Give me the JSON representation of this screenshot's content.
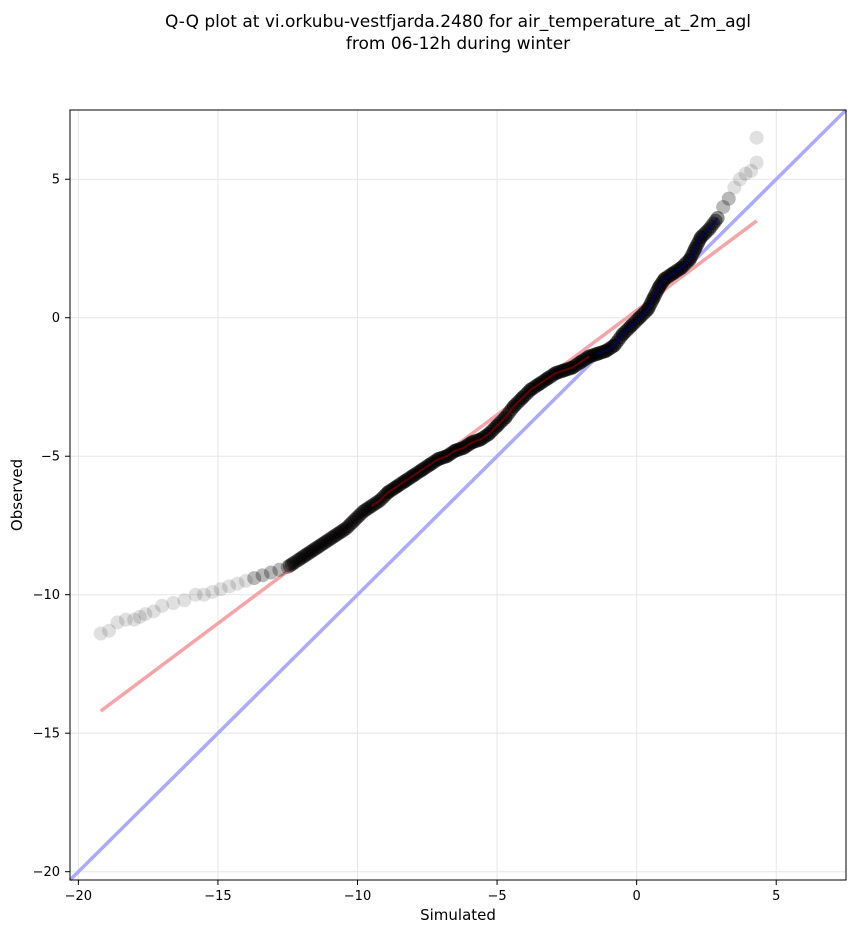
{
  "chart_data": {
    "type": "scatter",
    "title": [
      "Q-Q plot at vi.orkubu-vestfjarda.2480 for air_temperature_at_2m_agl",
      "from 06-12h during winter"
    ],
    "xlabel": "Simulated",
    "ylabel": "Observed",
    "xlim": [
      -20.3,
      7.5
    ],
    "ylim": [
      -20.3,
      7.5
    ],
    "xticks": [
      -20,
      -15,
      -10,
      -5,
      0,
      5
    ],
    "yticks": [
      -20,
      -15,
      -10,
      -5,
      0,
      5
    ],
    "xtick_labels": [
      "−20",
      "−15",
      "−10",
      "−5",
      "0",
      "5"
    ],
    "ytick_labels": [
      "−20",
      "−15",
      "−10",
      "−5",
      "0",
      "5"
    ],
    "grid": true,
    "colors": {
      "points": "#000000",
      "identity_line": "#aaaaff",
      "fit_line": "#f5a5a8",
      "dense_red": "#8b0000",
      "dense_blue": "#00008b"
    },
    "series": [
      {
        "kind": "quantile-points",
        "values": [
          [
            -19.2,
            -11.4
          ],
          [
            -18.9,
            -11.3
          ],
          [
            -18.6,
            -11.0
          ],
          [
            -18.3,
            -10.9
          ],
          [
            -18.0,
            -10.9
          ],
          [
            -17.8,
            -10.8
          ],
          [
            -17.6,
            -10.7
          ],
          [
            -17.3,
            -10.6
          ],
          [
            -17.0,
            -10.4
          ],
          [
            -16.6,
            -10.3
          ],
          [
            -16.2,
            -10.2
          ],
          [
            -15.8,
            -10.0
          ],
          [
            -15.5,
            -10.0
          ],
          [
            -15.2,
            -9.9
          ],
          [
            -14.9,
            -9.8
          ],
          [
            -14.6,
            -9.7
          ],
          [
            -14.3,
            -9.6
          ],
          [
            -14.0,
            -9.5
          ],
          [
            -13.7,
            -9.4
          ],
          [
            -13.4,
            -9.3
          ],
          [
            -13.1,
            -9.2
          ],
          [
            -12.8,
            -9.1
          ],
          [
            -12.5,
            -9.0
          ],
          [
            -12.2,
            -8.8
          ],
          [
            -11.9,
            -8.6
          ],
          [
            -11.6,
            -8.4
          ],
          [
            -11.3,
            -8.2
          ],
          [
            -11.0,
            -8.0
          ],
          [
            -10.7,
            -7.8
          ],
          [
            -10.4,
            -7.6
          ],
          [
            -10.1,
            -7.3
          ],
          [
            -9.8,
            -7.0
          ],
          [
            -9.5,
            -6.8
          ],
          [
            -9.2,
            -6.6
          ],
          [
            -8.9,
            -6.3
          ],
          [
            -8.6,
            -6.1
          ],
          [
            -8.3,
            -5.9
          ],
          [
            -8.0,
            -5.7
          ],
          [
            -7.7,
            -5.5
          ],
          [
            -7.4,
            -5.3
          ],
          [
            -7.1,
            -5.1
          ],
          [
            -6.8,
            -5.0
          ],
          [
            -6.5,
            -4.8
          ],
          [
            -6.2,
            -4.7
          ],
          [
            -5.9,
            -4.5
          ],
          [
            -5.6,
            -4.4
          ],
          [
            -5.3,
            -4.2
          ],
          [
            -5.0,
            -3.9
          ],
          [
            -4.7,
            -3.6
          ],
          [
            -4.4,
            -3.2
          ],
          [
            -4.1,
            -2.9
          ],
          [
            -3.8,
            -2.6
          ],
          [
            -3.5,
            -2.4
          ],
          [
            -3.2,
            -2.2
          ],
          [
            -2.9,
            -2.0
          ],
          [
            -2.6,
            -1.9
          ],
          [
            -2.3,
            -1.8
          ],
          [
            -2.0,
            -1.6
          ],
          [
            -1.7,
            -1.4
          ],
          [
            -1.4,
            -1.3
          ],
          [
            -1.1,
            -1.2
          ],
          [
            -0.8,
            -1.0
          ],
          [
            -0.5,
            -0.6
          ],
          [
            -0.2,
            -0.3
          ],
          [
            0.1,
            0.0
          ],
          [
            0.4,
            0.3
          ],
          [
            0.6,
            0.7
          ],
          [
            0.8,
            1.1
          ],
          [
            1.0,
            1.4
          ],
          [
            1.3,
            1.6
          ],
          [
            1.6,
            1.8
          ],
          [
            1.9,
            2.1
          ],
          [
            2.1,
            2.5
          ],
          [
            2.3,
            2.9
          ],
          [
            2.6,
            3.2
          ],
          [
            2.9,
            3.6
          ],
          [
            3.1,
            4.0
          ],
          [
            3.3,
            4.3
          ],
          [
            3.5,
            4.7
          ],
          [
            3.7,
            5.0
          ],
          [
            3.9,
            5.2
          ],
          [
            4.1,
            5.3
          ],
          [
            4.3,
            5.6
          ],
          [
            4.3,
            6.5
          ]
        ]
      },
      {
        "kind": "identity-line",
        "values": [
          [
            -20.3,
            -20.3
          ],
          [
            7.5,
            7.5
          ]
        ]
      },
      {
        "kind": "fit-line",
        "values": [
          [
            -19.2,
            -14.2
          ],
          [
            4.3,
            3.5
          ]
        ]
      }
    ]
  }
}
